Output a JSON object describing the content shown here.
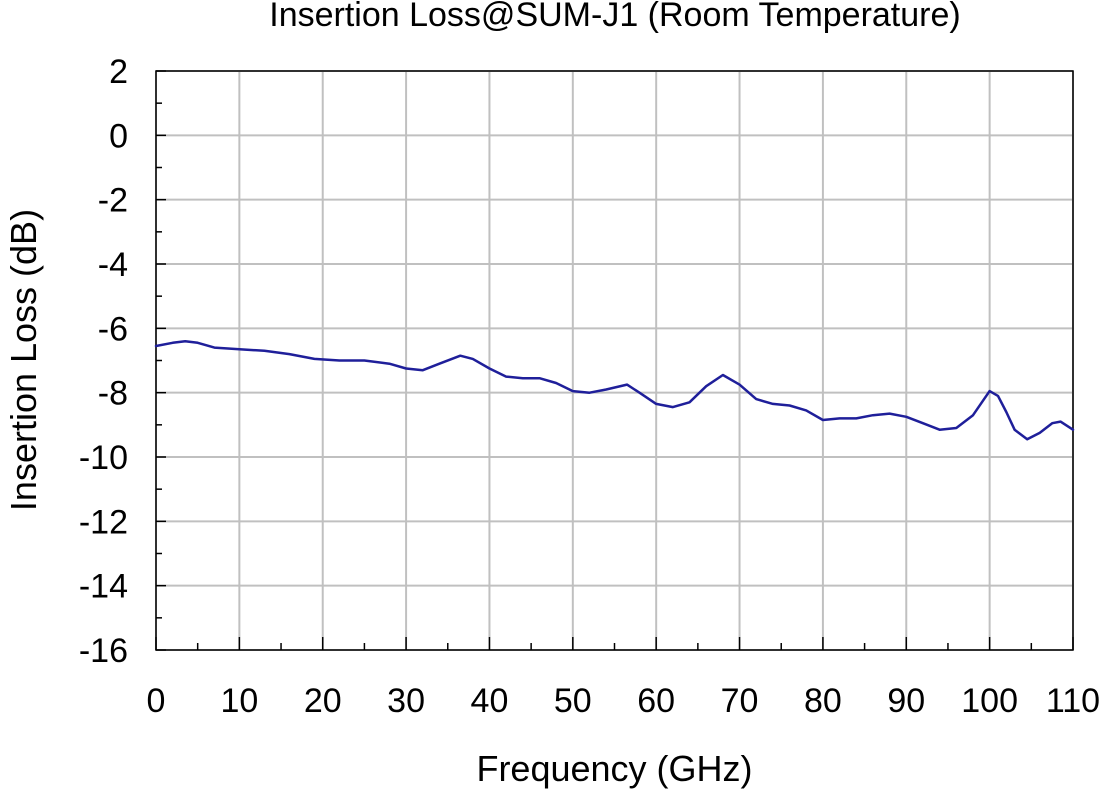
{
  "chart_data": {
    "type": "line",
    "title": "Insertion Loss@SUM-J1 (Room Temperature)",
    "xlabel": "Frequency (GHz)",
    "ylabel": "Insertion Loss (dB)",
    "xlim": [
      0,
      110
    ],
    "ylim": [
      -16,
      2
    ],
    "xticks": [
      "0",
      "10",
      "20",
      "30",
      "40",
      "50",
      "60",
      "70",
      "80",
      "90",
      "100",
      "110"
    ],
    "yticks": [
      "2",
      "0",
      "-2",
      "-4",
      "-6",
      "-8",
      "-10",
      "-12",
      "-14",
      "-16"
    ],
    "grid": true,
    "colors": {
      "line": "#1f1f9a",
      "grid": "#c0c0c0",
      "axis": "#000000"
    },
    "series": [
      {
        "x": [
          0,
          2,
          3.5,
          5,
          7,
          10,
          13,
          16,
          19,
          22,
          25,
          28,
          30,
          32,
          34,
          36.5,
          38,
          40,
          42,
          44,
          46,
          48,
          50,
          52,
          54,
          56.5,
          58,
          60,
          62,
          64,
          66,
          68,
          70,
          72,
          74,
          76,
          78,
          80,
          82,
          84,
          86,
          88,
          90,
          92,
          94,
          96,
          98,
          100,
          101,
          102,
          103,
          104.5,
          106,
          107.5,
          108.5,
          110
        ],
        "y": [
          -6.55,
          -6.45,
          -6.4,
          -6.45,
          -6.6,
          -6.65,
          -6.7,
          -6.8,
          -6.95,
          -7.0,
          -7.0,
          -7.1,
          -7.25,
          -7.3,
          -7.1,
          -6.85,
          -6.95,
          -7.25,
          -7.5,
          -7.55,
          -7.55,
          -7.7,
          -7.95,
          -8.0,
          -7.9,
          -7.75,
          -8.0,
          -8.35,
          -8.45,
          -8.3,
          -7.8,
          -7.45,
          -7.75,
          -8.2,
          -8.35,
          -8.4,
          -8.55,
          -8.85,
          -8.8,
          -8.8,
          -8.7,
          -8.65,
          -8.75,
          -8.95,
          -9.15,
          -9.1,
          -8.7,
          -7.95,
          -8.1,
          -8.6,
          -9.15,
          -9.45,
          -9.25,
          -8.95,
          -8.9,
          -9.15
        ]
      }
    ]
  }
}
